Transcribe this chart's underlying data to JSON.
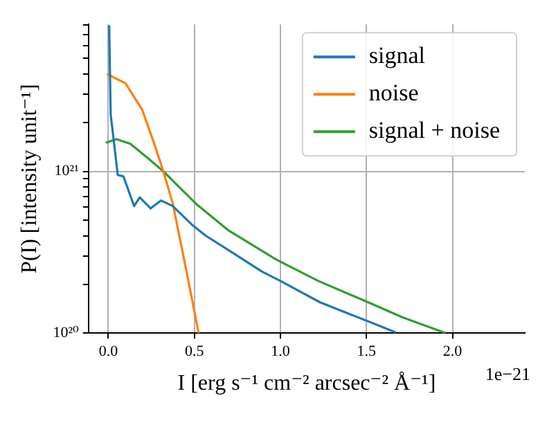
{
  "chart_data": {
    "type": "line",
    "xlabel": "I [erg s⁻¹ cm⁻² arcsec⁻² Å⁻¹]",
    "ylabel": "P(I) [intensity unit⁻¹]",
    "annotations": [
      "1e−21"
    ],
    "log": "y",
    "grid": true,
    "legend": "top right",
    "marker": "none",
    "line_style": "solid",
    "xlim": [
      -0.115,
      2.42
    ],
    "ylim": [
      1e+20,
      8.1e+21
    ],
    "xticks": [
      {
        "value": 0,
        "label": "0.0"
      },
      {
        "value": 0.5,
        "label": "0.5"
      },
      {
        "value": 1,
        "label": "1.0"
      },
      {
        "value": 1.5,
        "label": "1.5"
      },
      {
        "value": 2,
        "label": "2.0"
      }
    ],
    "yticks": [
      {
        "value": 1e+20,
        "label": "10²⁰"
      },
      {
        "value": 2e+20,
        "label": null
      },
      {
        "value": 3e+20,
        "label": null
      },
      {
        "value": 4e+20,
        "label": null
      },
      {
        "value": 5e+20,
        "label": null
      },
      {
        "value": 6e+20,
        "label": null
      },
      {
        "value": 7e+20,
        "label": null
      },
      {
        "value": 8e+20,
        "label": null
      },
      {
        "value": 9e+20,
        "label": null
      },
      {
        "value": 1e+21,
        "label": "10²¹"
      },
      {
        "value": 2e+21,
        "label": null
      },
      {
        "value": 3e+21,
        "label": null
      },
      {
        "value": 4e+21,
        "label": null
      },
      {
        "value": 5e+21,
        "label": null
      },
      {
        "value": 6e+21,
        "label": null
      },
      {
        "value": 7e+21,
        "label": null
      },
      {
        "value": 8e+21,
        "label": null
      }
    ],
    "series": [
      {
        "name": "signal",
        "color": "#1f77b4",
        "x": [
          0.005,
          0.014,
          0.055,
          0.088,
          0.15,
          0.183,
          0.246,
          0.306,
          0.374,
          0.484,
          0.566,
          0.73,
          0.893,
          1.0,
          1.23,
          1.52,
          1.67
        ],
        "values": [
          8e+21,
          2.24e+21,
          9.5e+20,
          9.3e+20,
          6.1e+20,
          6.9e+20,
          5.9e+20,
          6.6e+20,
          6.1e+20,
          4.7e+20,
          4e+20,
          3.1e+20,
          2.4e+20,
          2.1e+20,
          1.55e+20,
          1.17e+20,
          1.01e+20
        ]
      },
      {
        "name": "noise",
        "color": "#ff7f0e",
        "x": [
          -0.008,
          0.1,
          0.197,
          0.265,
          0.32,
          0.375,
          0.443,
          0.525
        ],
        "values": [
          4e+21,
          3.5e+21,
          2.4e+21,
          1.5e+21,
          1e+21,
          6.3e+20,
          2.76e+20,
          1e+20
        ]
      },
      {
        "name": "signal + noise",
        "color": "#2ca02c",
        "x": [
          -0.014,
          0.047,
          0.128,
          0.224,
          0.32,
          0.51,
          0.7,
          0.975,
          1.22,
          1.51,
          1.71,
          1.96
        ],
        "values": [
          1.5e+21,
          1.58e+21,
          1.48e+21,
          1.22e+21,
          1e+21,
          6.3e+20,
          4.3e+20,
          2.85e+20,
          2.1e+20,
          1.55e+20,
          1.25e+20,
          1e+20
        ]
      }
    ]
  }
}
